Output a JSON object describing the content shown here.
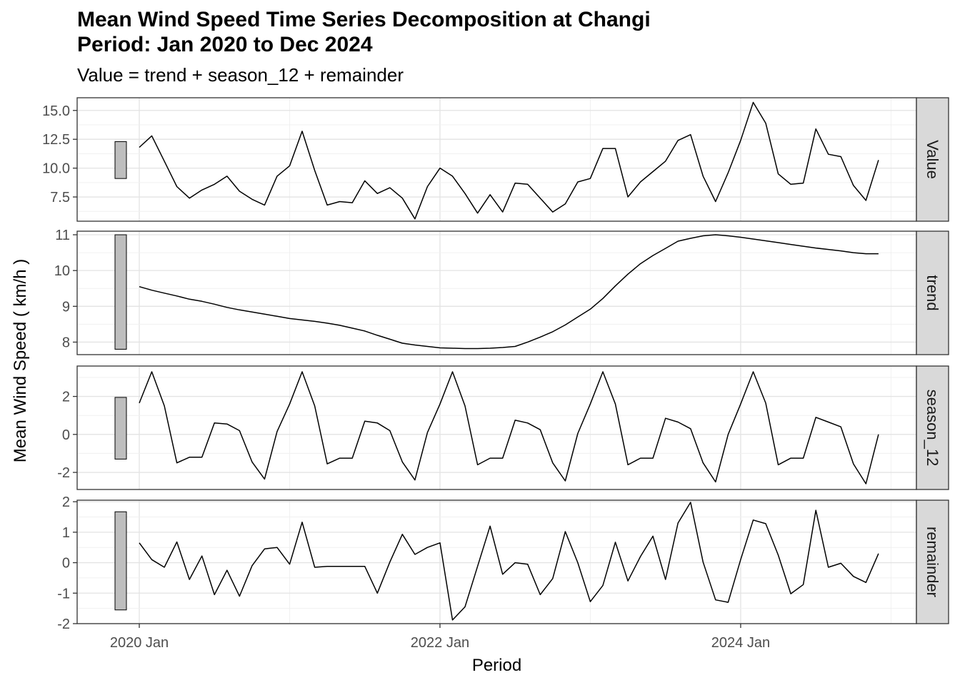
{
  "chart_data": {
    "type": "line",
    "title_lines": [
      "Mean Wind Speed Time Series Decomposition at Changi",
      "Period: Jan 2020 to Dec 2024"
    ],
    "subtitle": "Value = trend + season_12 + remainder",
    "xlabel": "Period",
    "ylabel": "Mean Wind Speed ( km/h )",
    "x_ticks": [
      "2020 Jan",
      "2022 Jan",
      "2024 Jan"
    ],
    "x_start": "2020 Jan",
    "x_end": "2024 Dec",
    "grid": true,
    "panels": [
      {
        "name": "Value",
        "ylim": [
          5.4,
          16.1
        ],
        "yticks": [
          "15.0",
          "12.5",
          "10.0",
          "7.5"
        ],
        "scale_bar": [
          9.1,
          12.3
        ],
        "values": [
          11.8,
          12.8,
          10.6,
          8.4,
          7.4,
          8.1,
          8.6,
          9.3,
          8.0,
          7.3,
          6.8,
          9.3,
          10.2,
          13.2,
          9.8,
          6.8,
          7.1,
          7.0,
          8.9,
          7.8,
          8.3,
          7.4,
          5.6,
          8.4,
          10.0,
          9.3,
          7.8,
          6.1,
          7.7,
          6.2,
          8.7,
          8.6,
          7.4,
          6.2,
          6.9,
          8.8,
          9.1,
          11.7,
          11.7,
          7.5,
          8.8,
          9.7,
          10.6,
          12.4,
          12.9,
          9.3,
          7.1,
          9.6,
          12.4,
          15.7,
          13.9,
          9.5,
          8.6,
          8.7,
          13.4,
          11.2,
          11.0,
          8.5,
          7.2,
          10.7
        ]
      },
      {
        "name": "trend",
        "ylim": [
          7.65,
          11.1
        ],
        "yticks": [
          "11",
          "10",
          "9",
          "8"
        ],
        "scale_bar": [
          7.8,
          11.0
        ],
        "values": [
          9.55,
          9.45,
          9.37,
          9.29,
          9.2,
          9.14,
          9.06,
          8.97,
          8.9,
          8.84,
          8.78,
          8.72,
          8.66,
          8.62,
          8.58,
          8.53,
          8.47,
          8.39,
          8.31,
          8.19,
          8.08,
          7.97,
          7.92,
          7.88,
          7.84,
          7.83,
          7.82,
          7.82,
          7.83,
          7.85,
          7.88,
          8.0,
          8.14,
          8.29,
          8.48,
          8.7,
          8.92,
          9.22,
          9.57,
          9.9,
          10.19,
          10.42,
          10.62,
          10.82,
          10.9,
          10.97,
          11.0,
          10.97,
          10.93,
          10.88,
          10.83,
          10.78,
          10.73,
          10.68,
          10.63,
          10.59,
          10.55,
          10.5,
          10.47,
          10.47
        ]
      },
      {
        "name": "season_12",
        "ylim": [
          -2.9,
          3.6
        ],
        "yticks": [
          "2",
          "0",
          "-2"
        ],
        "scale_bar": [
          -1.3,
          1.95
        ],
        "values": [
          1.65,
          3.3,
          1.5,
          -1.5,
          -1.2,
          -1.2,
          0.6,
          0.55,
          0.2,
          -1.45,
          -2.35,
          0.15,
          1.6,
          3.3,
          1.5,
          -1.55,
          -1.25,
          -1.25,
          0.7,
          0.6,
          0.2,
          -1.45,
          -2.4,
          0.1,
          1.6,
          3.3,
          1.5,
          -1.6,
          -1.25,
          -1.25,
          0.75,
          0.6,
          0.25,
          -1.5,
          -2.45,
          0.05,
          1.6,
          3.3,
          1.6,
          -1.6,
          -1.25,
          -1.25,
          0.85,
          0.65,
          0.3,
          -1.5,
          -2.5,
          0.0,
          1.6,
          3.3,
          1.65,
          -1.6,
          -1.25,
          -1.25,
          0.9,
          0.65,
          0.4,
          -1.55,
          -2.6,
          0.0
        ]
      },
      {
        "name": "remainder",
        "ylim": [
          -2.0,
          2.05
        ],
        "yticks": [
          "2",
          "1",
          "0",
          "-1",
          "-2"
        ],
        "scale_bar": [
          -1.55,
          1.67
        ],
        "values": [
          0.65,
          0.1,
          -0.15,
          0.68,
          -0.55,
          0.22,
          -1.05,
          -0.25,
          -1.1,
          -0.1,
          0.45,
          0.5,
          -0.05,
          1.33,
          -0.15,
          -0.12,
          -0.12,
          -0.12,
          -0.12,
          -1.0,
          0.02,
          0.93,
          0.27,
          0.5,
          0.65,
          -1.88,
          -1.45,
          -0.12,
          1.2,
          -0.38,
          0.0,
          -0.05,
          -1.05,
          -0.52,
          1.02,
          0.0,
          -1.28,
          -0.75,
          0.67,
          -0.6,
          0.2,
          0.87,
          -0.55,
          1.3,
          1.98,
          0.02,
          -1.22,
          -1.3,
          0.1,
          1.4,
          1.28,
          0.25,
          -1.02,
          -0.72,
          1.72,
          -0.15,
          -0.02,
          -0.45,
          -0.65,
          0.3
        ]
      }
    ]
  }
}
